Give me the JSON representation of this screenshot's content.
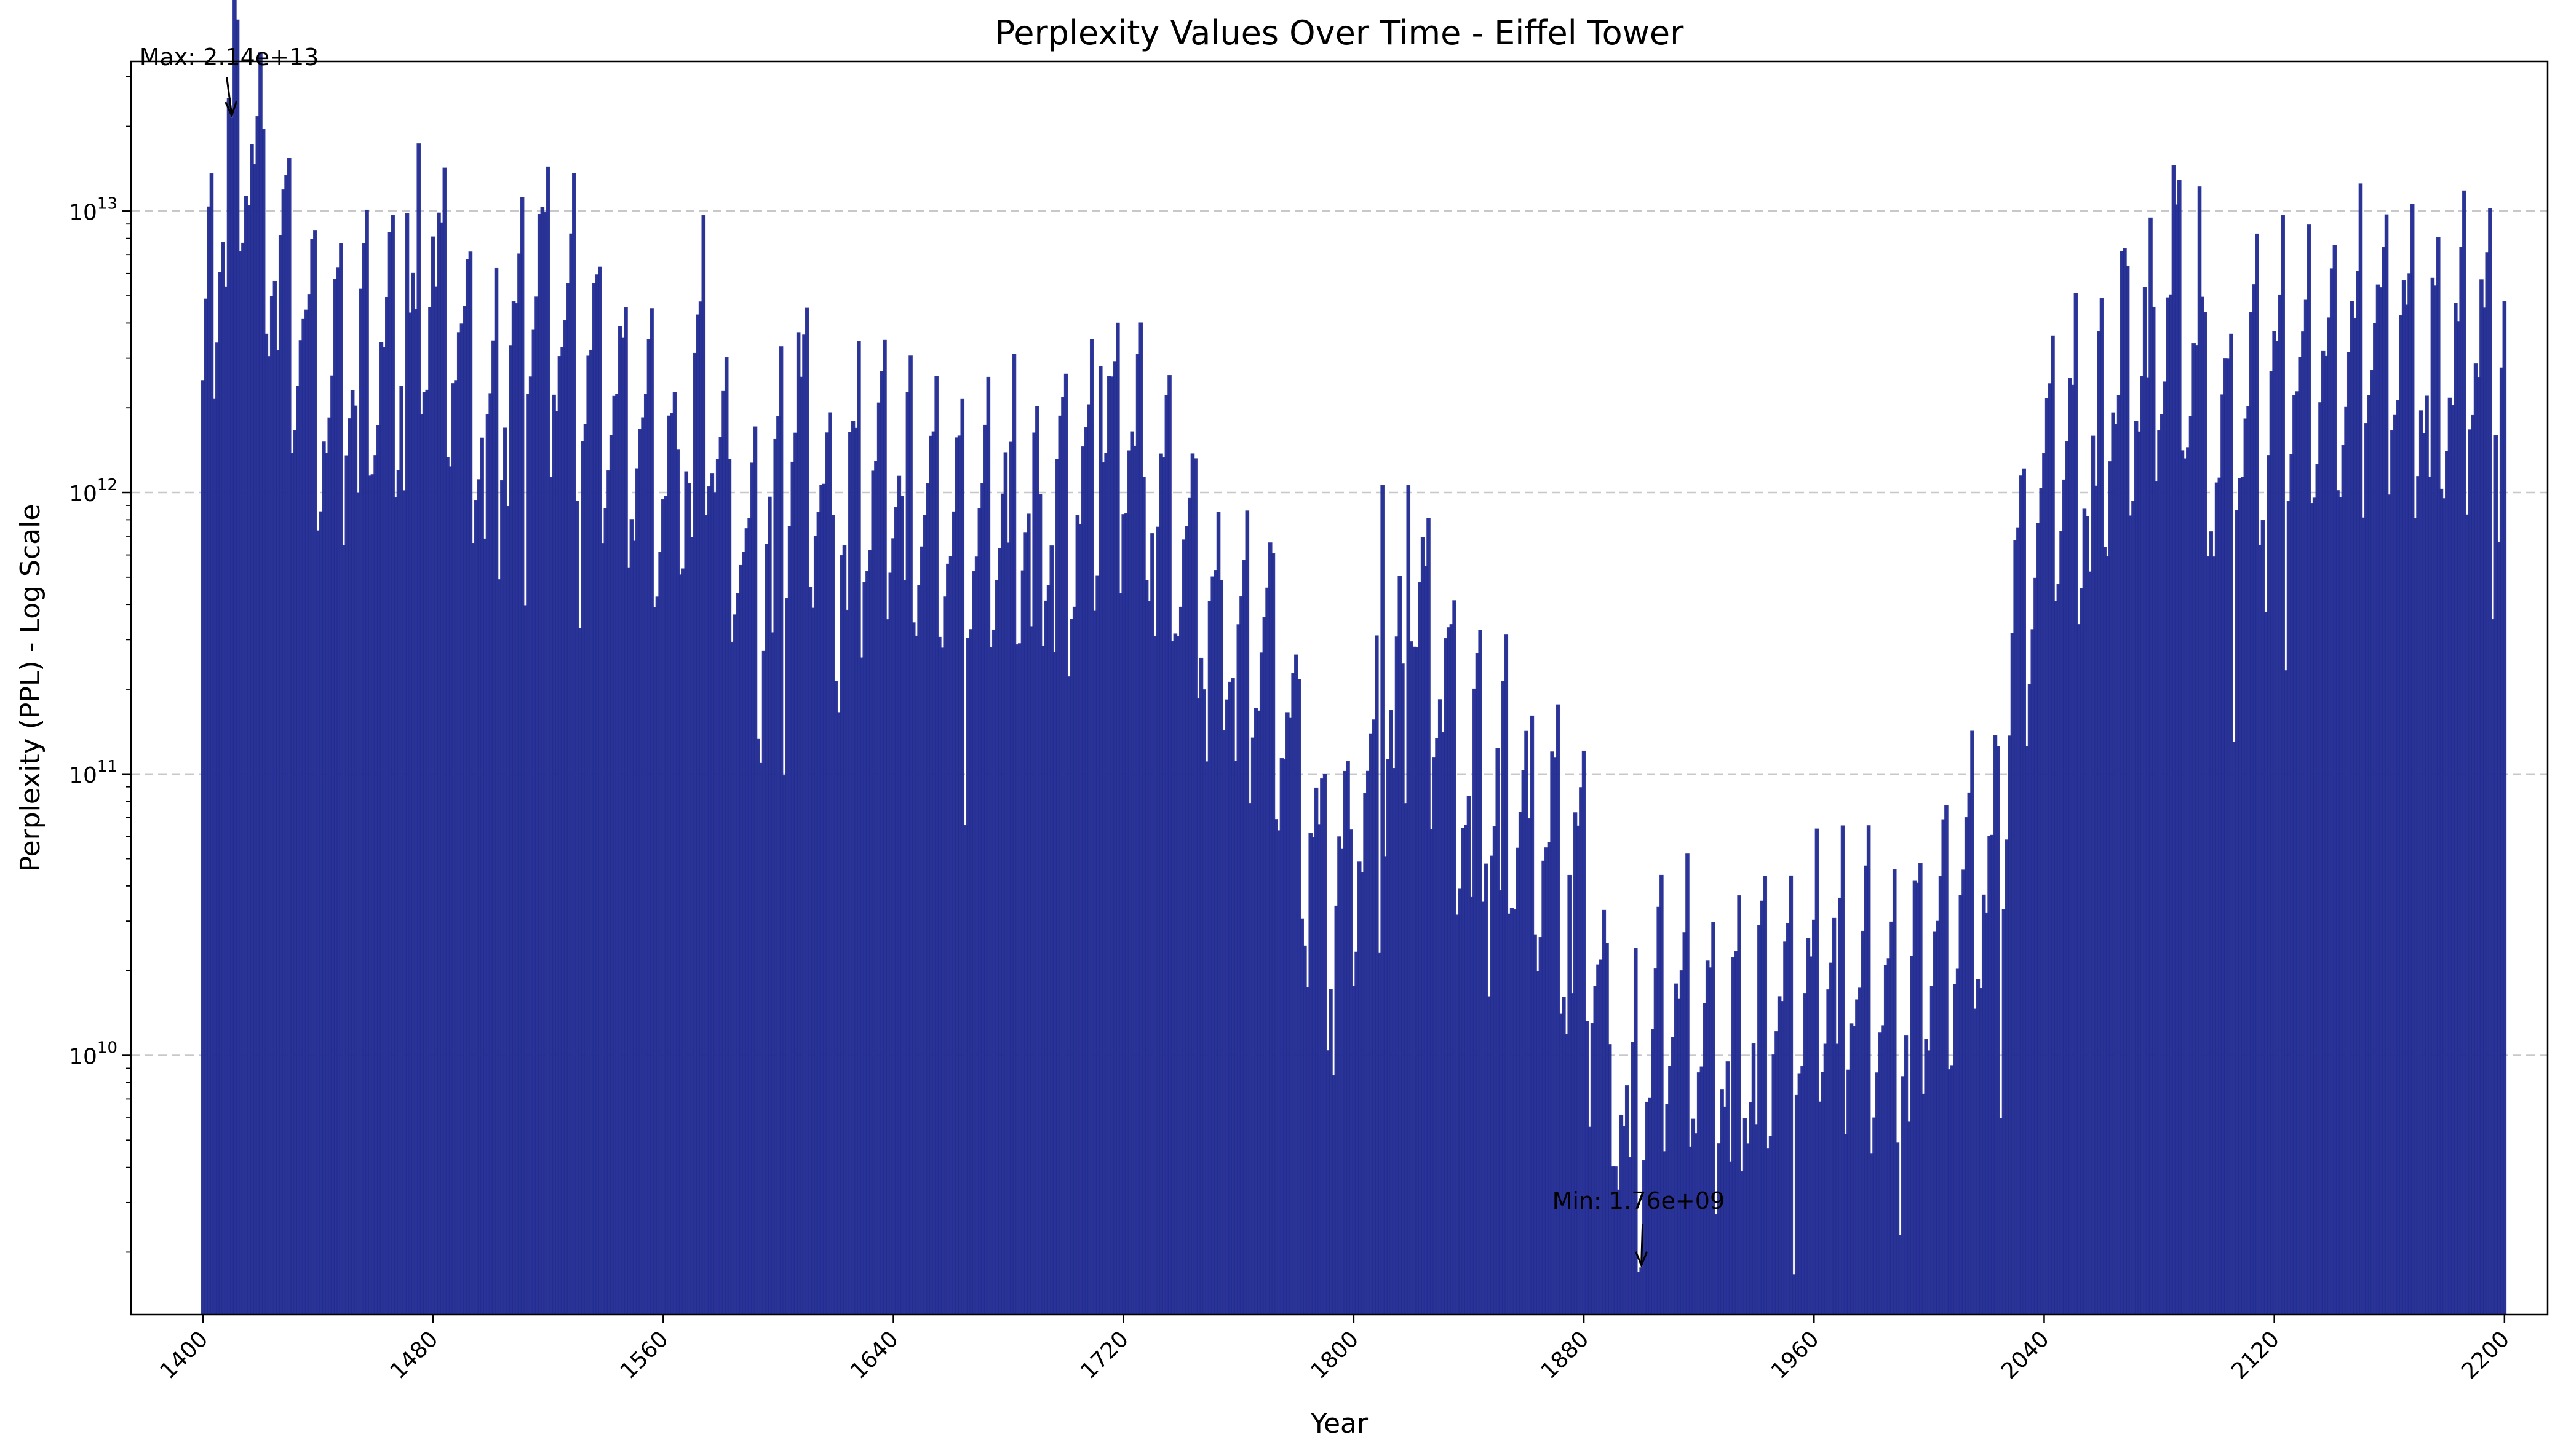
{
  "chart_data": {
    "type": "bar",
    "title": "Perplexity Values Over Time - Eiffel Tower",
    "xlabel": "Year",
    "ylabel": "Perplexity (PPL) - Log Scale",
    "yscale": "log",
    "xlim": [
      1375,
      2215
    ],
    "ylim": [
      1200000000.0,
      34000000000000.0
    ],
    "xticks": [
      1400,
      1480,
      1560,
      1640,
      1720,
      1800,
      1880,
      1960,
      2040,
      2120,
      2200
    ],
    "xtick_labels": [
      "1400",
      "1480",
      "1560",
      "1640",
      "1720",
      "1800",
      "1880",
      "1960",
      "2040",
      "2120",
      "2200"
    ],
    "ytick_labels": [
      {
        "base": "10",
        "exp": "10",
        "value": 10000000000.0
      },
      {
        "base": "10",
        "exp": "11",
        "value": 100000000000.0
      },
      {
        "base": "10",
        "exp": "12",
        "value": 1000000000000.0
      },
      {
        "base": "10",
        "exp": "13",
        "value": 10000000000000.0
      }
    ],
    "grid": {
      "y": true,
      "x": false
    },
    "bar_color": "#1f2a8f",
    "bar_edge_color": "#28309a",
    "anchors": [
      {
        "x": 1400,
        "y": 2500000000000.0
      },
      {
        "x": 1410,
        "y": 21000000000000.0
      },
      {
        "x": 1420,
        "y": 12000000000000.0
      },
      {
        "x": 1440,
        "y": 2200000000000.0
      },
      {
        "x": 1460,
        "y": 3000000000000.0
      },
      {
        "x": 1480,
        "y": 5000000000000.0
      },
      {
        "x": 1500,
        "y": 1500000000000.0
      },
      {
        "x": 1515,
        "y": 6000000000000.0
      },
      {
        "x": 1540,
        "y": 2000000000000.0
      },
      {
        "x": 1560,
        "y": 1000000000000.0
      },
      {
        "x": 1575,
        "y": 2500000000000.0
      },
      {
        "x": 1590,
        "y": 400000000000.0
      },
      {
        "x": 1605,
        "y": 1500000000000.0
      },
      {
        "x": 1620,
        "y": 900000000000.0
      },
      {
        "x": 1640,
        "y": 1000000000000.0
      },
      {
        "x": 1660,
        "y": 700000000000.0
      },
      {
        "x": 1680,
        "y": 800000000000.0
      },
      {
        "x": 1700,
        "y": 800000000000.0
      },
      {
        "x": 1720,
        "y": 1800000000000.0
      },
      {
        "x": 1735,
        "y": 800000000000.0
      },
      {
        "x": 1750,
        "y": 400000000000.0
      },
      {
        "x": 1770,
        "y": 250000000000.0
      },
      {
        "x": 1790,
        "y": 40000000000.0
      },
      {
        "x": 1810,
        "y": 100000000000.0
      },
      {
        "x": 1820,
        "y": 400000000000.0
      },
      {
        "x": 1840,
        "y": 100000000000.0
      },
      {
        "x": 1860,
        "y": 70000000000.0
      },
      {
        "x": 1880,
        "y": 40000000000.0
      },
      {
        "x": 1895,
        "y": 5000000000.0
      },
      {
        "x": 1910,
        "y": 15000000000.0
      },
      {
        "x": 1930,
        "y": 10000000000.0
      },
      {
        "x": 1950,
        "y": 15000000000.0
      },
      {
        "x": 1970,
        "y": 18000000000.0
      },
      {
        "x": 1990,
        "y": 15000000000.0
      },
      {
        "x": 2010,
        "y": 30000000000.0
      },
      {
        "x": 2025,
        "y": 50000000000.0
      },
      {
        "x": 2030,
        "y": 400000000000.0
      },
      {
        "x": 2050,
        "y": 1200000000000.0
      },
      {
        "x": 2070,
        "y": 2500000000000.0
      },
      {
        "x": 2085,
        "y": 5000000000000.0
      },
      {
        "x": 2100,
        "y": 1200000000000.0
      },
      {
        "x": 2120,
        "y": 2500000000000.0
      },
      {
        "x": 2140,
        "y": 2800000000000.0
      },
      {
        "x": 2160,
        "y": 3500000000000.0
      },
      {
        "x": 2180,
        "y": 2500000000000.0
      },
      {
        "x": 2200,
        "y": 4000000000000.0
      }
    ],
    "spikes": [
      {
        "x": 1410,
        "y": 21400000000000.0
      },
      {
        "x": 1421,
        "y": 19500000000000.0
      },
      {
        "x": 1471,
        "y": 9800000000000.0
      },
      {
        "x": 1480,
        "y": 8100000000000.0
      },
      {
        "x": 1511,
        "y": 11200000000000.0
      },
      {
        "x": 1519,
        "y": 9900000000000.0
      },
      {
        "x": 1607,
        "y": 3700000000000.0
      },
      {
        "x": 1712,
        "y": 2800000000000.0
      },
      {
        "x": 1810,
        "y": 1060000000000.0
      },
      {
        "x": 1819,
        "y": 1060000000000.0
      },
      {
        "x": 2043,
        "y": 3600000000000.0
      },
      {
        "x": 2067,
        "y": 7200000000000.0
      },
      {
        "x": 2085,
        "y": 14500000000000.0
      },
      {
        "x": 2094,
        "y": 12200000000000.0
      },
      {
        "x": 2186,
        "y": 11800000000000.0
      },
      {
        "x": 2195,
        "y": 10200000000000.0
      }
    ],
    "annotations": [
      {
        "label": "Max: 2.14e+13",
        "x": 1410,
        "y": 21400000000000.0
      },
      {
        "label": "Min: 1.76e+09",
        "x": 1900,
        "y": 1760000000.0
      }
    ]
  }
}
